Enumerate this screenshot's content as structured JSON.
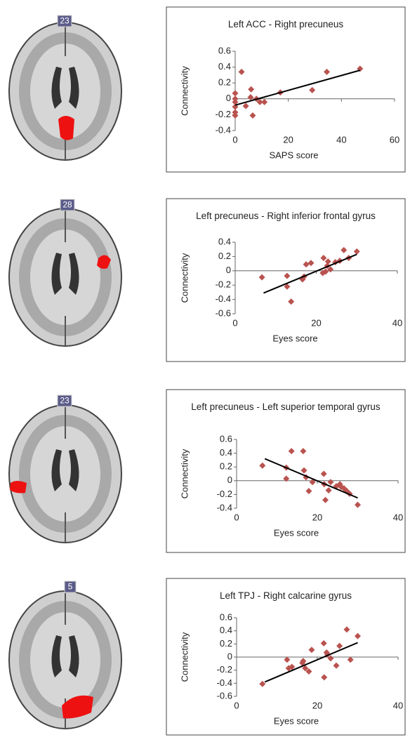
{
  "slices": [
    "23",
    "28",
    "23",
    "5"
  ],
  "chart_data": [
    {
      "type": "scatter",
      "title": "Left ACC - Right precuneus",
      "x_label": "SAPS score",
      "y_label": "Connectivity",
      "color": "#b9534f",
      "x": [
        0,
        0,
        0,
        0,
        0,
        0,
        2.4,
        4,
        5.8,
        6,
        6.6,
        8,
        9.3,
        11,
        17,
        29,
        34.5,
        47
      ],
      "values": [
        -0.04,
        0.07,
        -0.1,
        -0.17,
        -0.21,
        0,
        0.34,
        -0.09,
        0.02,
        0.12,
        -0.21,
        0,
        -0.04,
        -0.04,
        0.08,
        0.11,
        0.34,
        0.38
      ],
      "fit": {
        "x": [
          0,
          47
        ],
        "y": [
          -0.08,
          0.36
        ]
      },
      "xlim": [
        0,
        60
      ],
      "xticks": [
        0,
        20,
        40,
        60
      ],
      "ylim": [
        -0.4,
        0.6
      ],
      "yticks": [
        -0.4,
        -0.2,
        0,
        0.2,
        0.4,
        0.6
      ]
    },
    {
      "type": "scatter",
      "title": "Left precuneus - Right inferior frontal gyrus",
      "x_label": "Eyes score",
      "y_label": "Connectivity",
      "color": "#b9534f",
      "x": [
        6.6,
        12.8,
        12.8,
        13.8,
        16.6,
        17,
        17.5,
        18.7,
        21.8,
        21.6,
        22.3,
        22.7,
        22.9,
        23.5,
        24.7,
        25.8,
        26.8,
        28,
        30
      ],
      "values": [
        -0.09,
        -0.07,
        -0.22,
        -0.43,
        -0.12,
        -0.08,
        0.09,
        0.11,
        0.18,
        -0.03,
        -0.01,
        0.07,
        0.13,
        0.02,
        0.12,
        0.14,
        0.29,
        0.18,
        0.27
      ],
      "fit": {
        "x": [
          7,
          30
        ],
        "y": [
          -0.31,
          0.23
        ]
      },
      "xlim": [
        0,
        40
      ],
      "xticks": [
        0,
        20,
        40
      ],
      "ylim": [
        -0.6,
        0.4
      ],
      "yticks": [
        -0.6,
        -0.4,
        -0.2,
        0,
        0.2,
        0.4
      ]
    },
    {
      "type": "scatter",
      "title": "Left precuneus - Left superior temporal gyrus",
      "x_label": "Eyes score",
      "y_label": "Connectivity",
      "color": "#b9534f",
      "x": [
        6.4,
        12.3,
        12.3,
        13.6,
        16.5,
        16.7,
        17.2,
        17.9,
        18.8,
        21.6,
        21.7,
        22,
        22.8,
        23.3,
        24.7,
        25.6,
        25.9,
        26.6,
        27.3,
        28,
        30
      ],
      "values": [
        0.22,
        0.03,
        0.19,
        0.43,
        0.43,
        0.15,
        0.05,
        -0.15,
        -0.02,
        0.1,
        -0.05,
        -0.28,
        -0.14,
        -0.02,
        -0.08,
        -0.05,
        -0.09,
        -0.11,
        -0.15,
        -0.19,
        -0.35
      ],
      "fit": {
        "x": [
          7,
          30
        ],
        "y": [
          0.32,
          -0.25
        ]
      },
      "xlim": [
        0,
        40
      ],
      "xticks": [
        0,
        20,
        40
      ],
      "ylim": [
        -0.4,
        0.6
      ],
      "yticks": [
        -0.4,
        -0.2,
        0,
        0.2,
        0.4,
        0.6
      ]
    },
    {
      "type": "scatter",
      "title": "Left TPJ - Right calcarine gyrus",
      "x_label": "Eyes score",
      "y_label": "Connectivity",
      "color": "#b9534f",
      "x": [
        6.4,
        12.5,
        12.9,
        13.7,
        16.3,
        16.5,
        17,
        17.9,
        18.6,
        21.6,
        21.7,
        22.3,
        22.5,
        23.3,
        24.7,
        25.5,
        27.3,
        28.2,
        30
      ],
      "values": [
        -0.41,
        -0.04,
        -0.17,
        -0.15,
        -0.09,
        -0.06,
        -0.17,
        -0.22,
        0.11,
        0.21,
        -0.31,
        0.07,
        0.04,
        -0.02,
        -0.13,
        0.17,
        0.42,
        -0.04,
        0.32
      ],
      "fit": {
        "x": [
          7,
          30
        ],
        "y": [
          -0.38,
          0.22
        ]
      },
      "xlim": [
        0,
        40
      ],
      "xticks": [
        0,
        20,
        40
      ],
      "ylim": [
        -0.6,
        0.6
      ],
      "yticks": [
        -0.6,
        -0.4,
        -0.2,
        0,
        0.2,
        0.4,
        0.6
      ]
    }
  ]
}
